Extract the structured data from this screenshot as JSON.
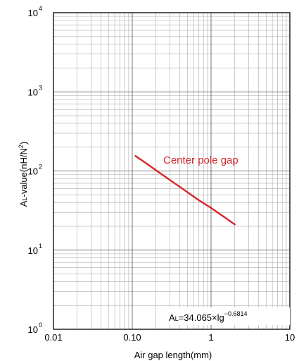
{
  "chart_data": {
    "type": "line",
    "xscale": "log",
    "yscale": "log",
    "xlim": [
      0.01,
      10
    ],
    "ylim": [
      1,
      10000
    ],
    "grid": true,
    "xlabel": "Air gap length(mm)",
    "ylabel_prefix": "A",
    "ylabel_sub": "L",
    "ylabel_rest": "-value(nH/N",
    "ylabel_sup": "2",
    "ylabel_end": ")",
    "xticks": [
      {
        "value": 0.01,
        "label": "0.01"
      },
      {
        "value": 0.1,
        "label": "0.10"
      },
      {
        "value": 1,
        "label": "1"
      },
      {
        "value": 10,
        "label": "10"
      }
    ],
    "yticks": [
      {
        "value": 1,
        "base": "10",
        "exp": "0"
      },
      {
        "value": 10,
        "base": "10",
        "exp": "1"
      },
      {
        "value": 100,
        "base": "10",
        "exp": "2"
      },
      {
        "value": 1000,
        "base": "10",
        "exp": "3"
      },
      {
        "value": 10000,
        "base": "10",
        "exp": "4"
      }
    ],
    "series": [
      {
        "name": "Center pole gap",
        "color": "#d6262b",
        "x": [
          0.11,
          0.15,
          0.2,
          0.3,
          0.5,
          0.7,
          1.0,
          1.5,
          2.0
        ],
        "y": [
          154.7,
          125.2,
          102.1,
          77.0,
          54.0,
          42.7,
          34.1,
          25.8,
          21.1
        ]
      }
    ],
    "annotation": {
      "text": "Center pole gap"
    },
    "formula": {
      "a": "A",
      "l": "L",
      "body": "=34.065×lg",
      "exp": "−0.6814"
    }
  }
}
